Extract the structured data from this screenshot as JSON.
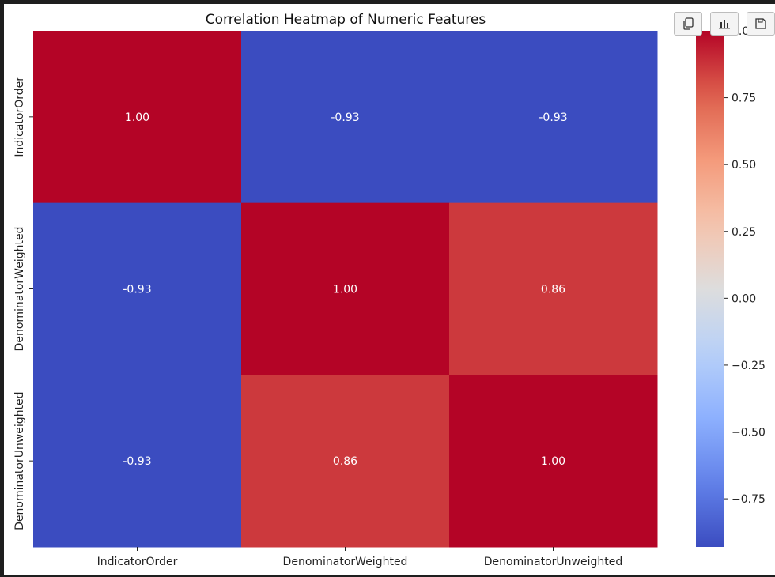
{
  "chart_data": {
    "type": "heatmap",
    "title": "Correlation Heatmap of Numeric Features",
    "x_labels": [
      "IndicatorOrder",
      "DenominatorWeighted",
      "DenominatorUnweighted"
    ],
    "y_labels": [
      "IndicatorOrder",
      "DenominatorWeighted",
      "DenominatorUnweighted"
    ],
    "values": [
      [
        1.0,
        -0.93,
        -0.93
      ],
      [
        -0.93,
        1.0,
        0.86
      ],
      [
        -0.93,
        0.86,
        1.0
      ]
    ],
    "annotations": [
      [
        "1.00",
        "-0.93",
        "-0.93"
      ],
      [
        "-0.93",
        "1.00",
        "0.86"
      ],
      [
        "-0.93",
        "0.86",
        "1.00"
      ]
    ],
    "colormap": "coolwarm",
    "colorbar": {
      "vmin": -0.93,
      "vmax": 1.0,
      "ticks": [
        1.0,
        0.75,
        0.5,
        0.25,
        0.0,
        -0.25,
        -0.5,
        -0.75
      ],
      "tick_labels": [
        "1.00",
        "0.75",
        "0.50",
        "0.25",
        "0.00",
        "−0.25",
        "−0.50",
        "−0.75"
      ]
    },
    "xlabel": "",
    "ylabel": ""
  },
  "toolbar": {
    "buttons": [
      {
        "name": "copy-button",
        "icon": "copy-icon"
      },
      {
        "name": "chart-button",
        "icon": "bar-chart-icon"
      },
      {
        "name": "save-button",
        "icon": "save-icon"
      }
    ]
  }
}
